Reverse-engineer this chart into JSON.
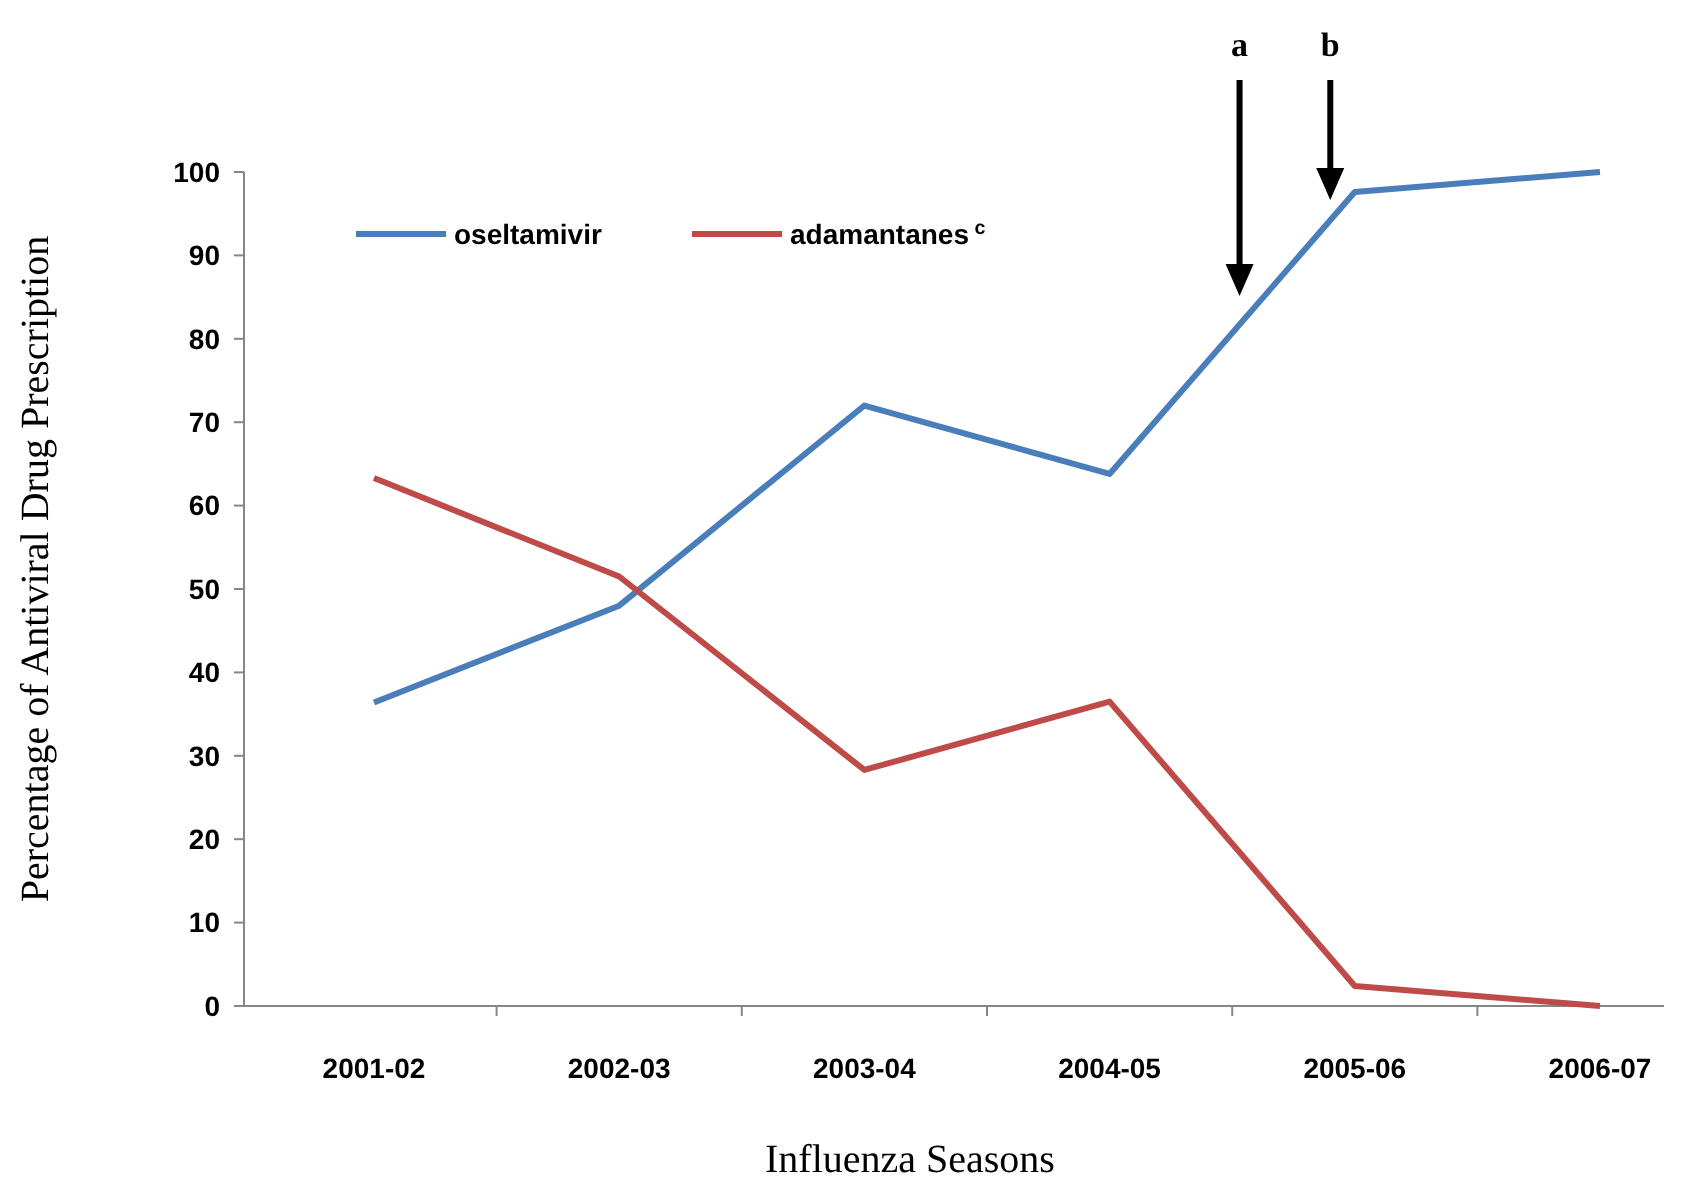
{
  "chart_data": {
    "type": "line",
    "xlabel": "Influenza Seasons",
    "ylabel": "Percentage of Antiviral Drug Prescription",
    "categories": [
      "2001-02",
      "2002-03",
      "2003-04",
      "2004-05",
      "2005-06",
      "2006-07"
    ],
    "series": [
      {
        "name": "oseltamivir",
        "color": "#4a7ebb",
        "values": [
          36.4,
          48,
          72,
          63.8,
          97.6,
          100
        ]
      },
      {
        "name": "adamantanes$^{c}$",
        "color": "#be4b48",
        "values": [
          63.3,
          51.5,
          28.3,
          36.5,
          2.4,
          0
        ]
      }
    ],
    "ylim": [
      0,
      100
    ],
    "yticks": [
      0,
      10,
      20,
      30,
      40,
      50,
      60,
      70,
      80,
      90,
      100
    ],
    "grid": false,
    "legend": "top left",
    "marker": "none",
    "line_style": "solid",
    "annotations": [
      "a",
      "b"
    ]
  }
}
